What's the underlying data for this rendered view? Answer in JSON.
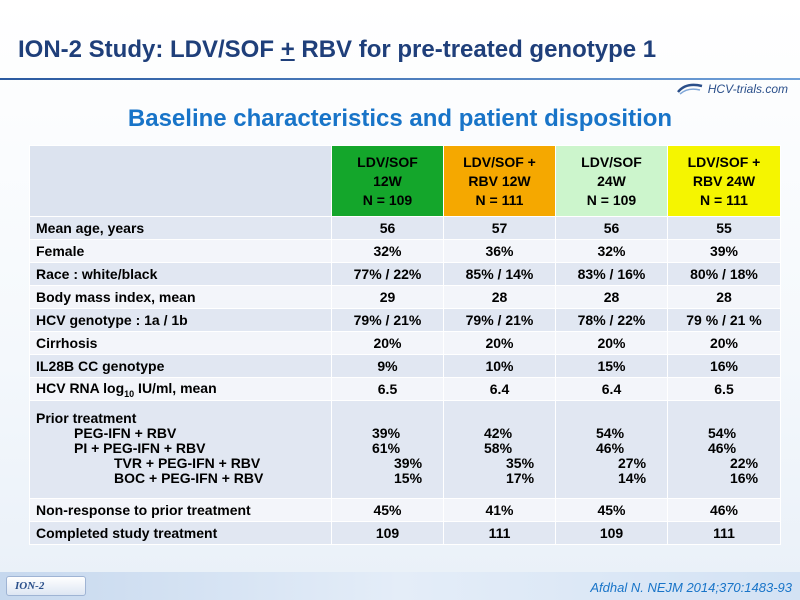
{
  "title": {
    "pre": "ION-2 Study: LDV/SOF ",
    "plus": "+",
    "post": " RBV for pre-treated genotype 1"
  },
  "logo": {
    "text": "HCV-trials.com"
  },
  "subtitle": "Baseline characteristics and patient disposition",
  "colors": {
    "green": "#14a62b",
    "orange": "#f5a800",
    "light_green": "#ccf5cc",
    "yellow": "#f5f500",
    "title": "#1f3f7a",
    "subtitle": "#1874c8"
  },
  "columns": [
    {
      "line1": "LDV/SOF",
      "line2": "12W",
      "line3": "N = 109"
    },
    {
      "line1": "LDV/SOF +",
      "line2": "RBV 12W",
      "line3": "N = 111"
    },
    {
      "line1": "LDV/SOF",
      "line2": "24W",
      "line3": "N = 109"
    },
    {
      "line1": "LDV/SOF +",
      "line2": "RBV 24W",
      "line3": "N = 111"
    }
  ],
  "rows": [
    {
      "label": "Mean age, years",
      "values": [
        "56",
        "57",
        "56",
        "55"
      ]
    },
    {
      "label": "Female",
      "values": [
        "32%",
        "36%",
        "32%",
        "39%"
      ]
    },
    {
      "label": "Race : white/black",
      "values": [
        "77% / 22%",
        "85% / 14%",
        "83% / 16%",
        "80% / 18%"
      ]
    },
    {
      "label": "Body mass index, mean",
      "values": [
        "29",
        "28",
        "28",
        "28"
      ]
    },
    {
      "label": "HCV genotype : 1a / 1b",
      "values": [
        "79% / 21%",
        "79% / 21%",
        "78% / 22%",
        "79 % / 21 %"
      ]
    },
    {
      "label": "Cirrhosis",
      "values": [
        "20%",
        "20%",
        "20%",
        "20%"
      ]
    },
    {
      "label": "IL28B CC genotype",
      "values": [
        "9%",
        "10%",
        "15%",
        "16%"
      ]
    },
    {
      "label_pre": "HCV RNA log",
      "label_sub": "10",
      "label_post": " IU/ml, mean",
      "values": [
        "6.5",
        "6.4",
        "6.4",
        "6.5"
      ]
    }
  ],
  "prior": {
    "heading": "Prior treatment",
    "items": [
      {
        "label": "PEG-IFN + RBV",
        "values": [
          "39%",
          "42%",
          "54%",
          "54%"
        ]
      },
      {
        "label": "PI + PEG-IFN + RBV",
        "values": [
          "61%",
          "58%",
          "46%",
          "46%"
        ]
      },
      {
        "label": "TVR + PEG-IFN + RBV",
        "values": [
          "39%",
          "35%",
          "27%",
          "22%"
        ]
      },
      {
        "label": "BOC + PEG-IFN + RBV",
        "values": [
          "15%",
          "17%",
          "14%",
          "16%"
        ]
      }
    ]
  },
  "rows_after": [
    {
      "label": "Non-response to prior treatment",
      "values": [
        "45%",
        "41%",
        "45%",
        "46%"
      ]
    },
    {
      "label": "Completed study treatment",
      "values": [
        "109",
        "111",
        "109",
        "111"
      ]
    }
  ],
  "footer": {
    "badge": "ION-2",
    "reference": "Afdhal N. NEJM 2014;370:1483-93"
  }
}
